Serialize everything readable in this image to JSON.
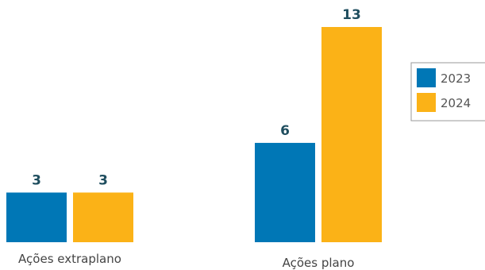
{
  "chart_data": {
    "type": "bar",
    "categories": [
      "Ações extraplano",
      "Ações plano"
    ],
    "series": [
      {
        "name": "2023",
        "values": [
          3,
          6
        ],
        "color": "#0077b6"
      },
      {
        "name": "2024",
        "values": [
          3,
          13
        ],
        "color": "#fbb217"
      }
    ],
    "ylim": [
      0,
      13
    ],
    "grid": false,
    "legend": "right",
    "title": "",
    "xlabel": "",
    "ylabel": ""
  }
}
